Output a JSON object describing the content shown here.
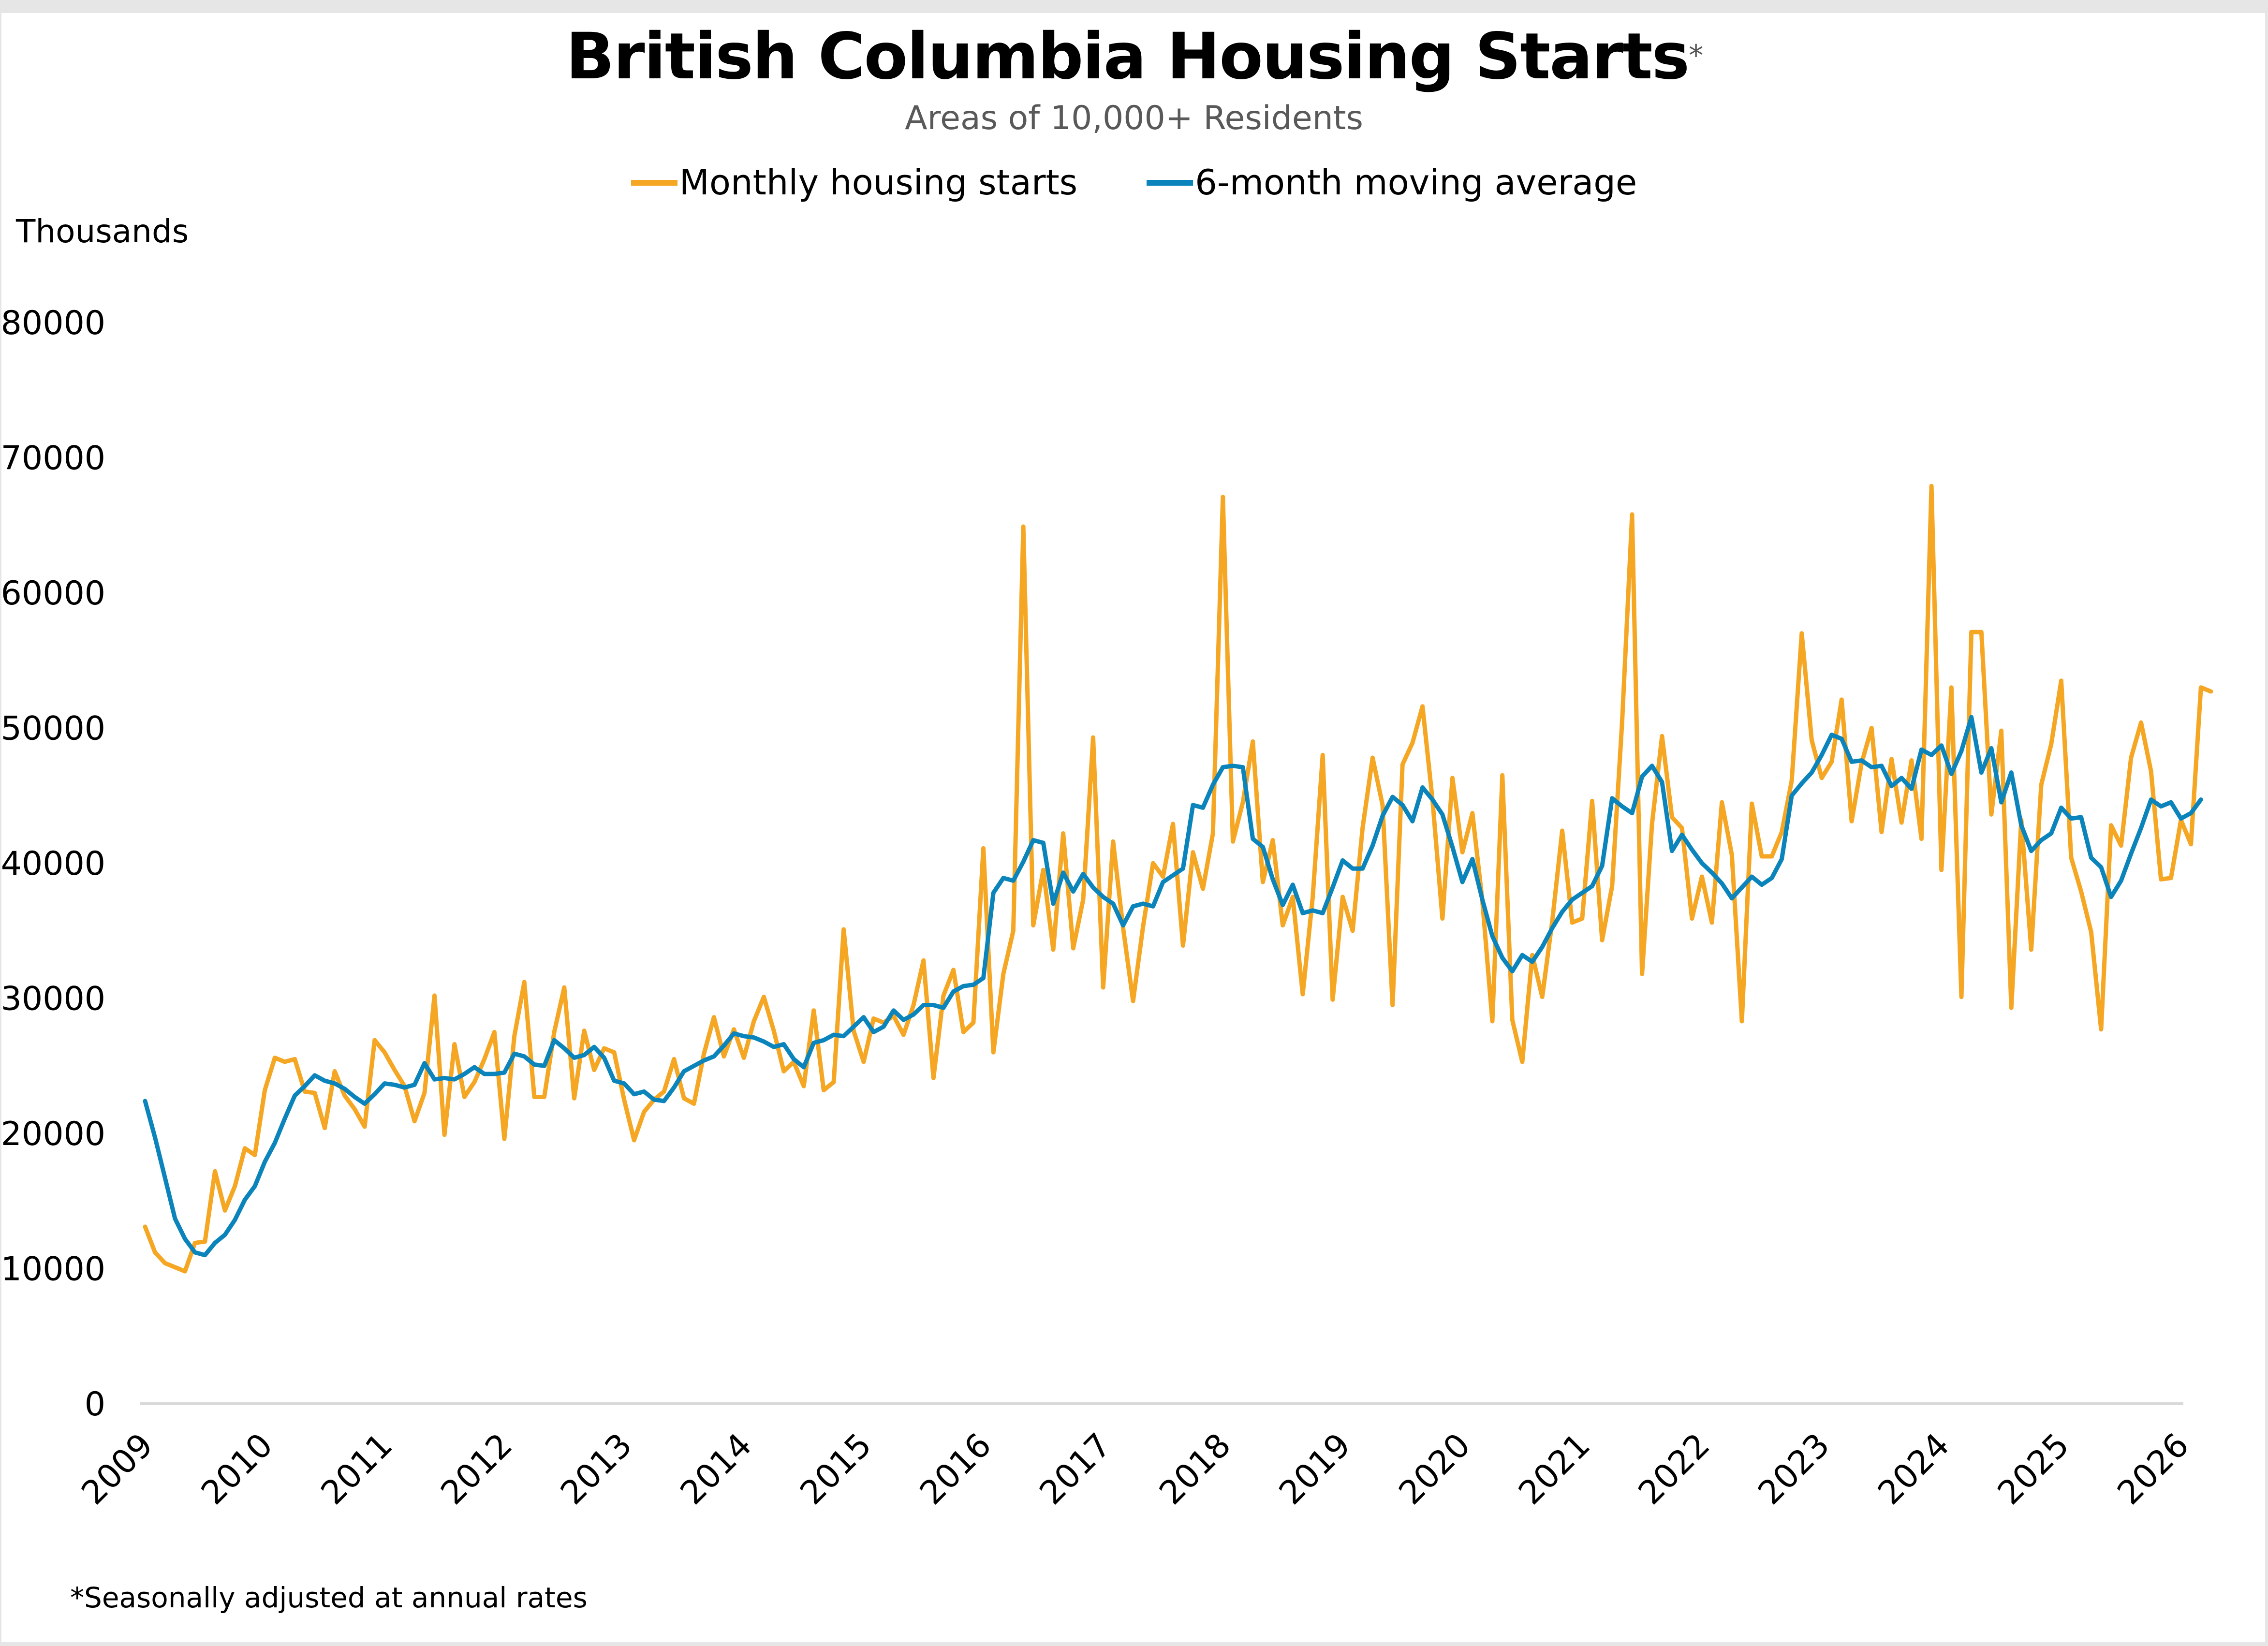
{
  "chart_data": {
    "type": "line",
    "title": "British Columbia Housing Starts",
    "title_marker": "*",
    "subtitle": "Areas of 10,000+ Residents",
    "ylabel": "Thousands",
    "xlabel": "",
    "ylim": [
      0,
      80000
    ],
    "yticks": [
      "0",
      "10000",
      "20000",
      "30000",
      "40000",
      "50000",
      "60000",
      "70000",
      "80000"
    ],
    "ytick_values": [
      0,
      10000,
      20000,
      30000,
      40000,
      50000,
      60000,
      70000,
      80000
    ],
    "xticks": [
      "2009",
      "2010",
      "2011",
      "2012",
      "2013",
      "2014",
      "2015",
      "2016",
      "2017",
      "2018",
      "2019",
      "2020",
      "2021",
      "2022",
      "2023",
      "2024",
      "2025",
      "2026"
    ],
    "x_start": "2009-01",
    "x_frequency": "monthly",
    "grid": false,
    "legend_position": "top",
    "footnote": "*Seasonally adjusted at annual rates",
    "series": [
      {
        "name": "Monthly housing starts",
        "color": "#F5A623",
        "values": [
          13100,
          11200,
          10400,
          10100,
          9800,
          11900,
          12000,
          17200,
          14300,
          16100,
          18900,
          18400,
          23200,
          25600,
          25300,
          25500,
          23100,
          23000,
          20400,
          24600,
          22800,
          21800,
          20500,
          26900,
          26000,
          24700,
          23500,
          20900,
          23000,
          30200,
          19900,
          26600,
          22700,
          23800,
          25500,
          27500,
          19600,
          27200,
          31200,
          22700,
          22700,
          27500,
          30800,
          22600,
          27600,
          24700,
          26300,
          26000,
          22500,
          19500,
          21600,
          22500,
          23100,
          25500,
          22600,
          22200,
          25900,
          28600,
          25700,
          27700,
          25600,
          28300,
          30100,
          27600,
          24600,
          25300,
          23500,
          29100,
          23200,
          23800,
          35100,
          27600,
          25300,
          28500,
          28200,
          28700,
          27300,
          29500,
          32800,
          24100,
          30200,
          32100,
          27500,
          28200,
          41100,
          26000,
          31800,
          35000,
          64900,
          35400,
          39500,
          33600,
          42200,
          33700,
          37300,
          49300,
          30800,
          41600,
          35200,
          29800,
          35300,
          40000,
          39000,
          42900,
          33900,
          40800,
          38100,
          42200,
          67100,
          41600,
          44500,
          49000,
          38600,
          41700,
          35400,
          37500,
          30300,
          37500,
          48000,
          29900,
          37500,
          35000,
          42600,
          47800,
          44300,
          29500,
          47300,
          48900,
          51600,
          44700,
          35900,
          46300,
          40800,
          43700,
          37200,
          28300,
          46500,
          28400,
          25300,
          33200,
          30100,
          35700,
          42400,
          35600,
          35900,
          44600,
          34300,
          38300,
          50400,
          65800,
          31800,
          42900,
          49400,
          43400,
          42600,
          35900,
          39000,
          35600,
          44500,
          40600,
          28300,
          44400,
          40500,
          40500,
          42300,
          46100,
          57000,
          49100,
          46300,
          47500,
          52100,
          43100,
          47400,
          50000,
          42300,
          47700,
          43000,
          47600,
          41800,
          67900,
          39500,
          53000,
          30100,
          57100,
          57100,
          43600,
          49800,
          29300,
          43200,
          33600,
          45800,
          48800,
          53500,
          40400,
          37900,
          34900,
          27700,
          42800,
          41300,
          47800,
          50400,
          46800,
          38800,
          38900,
          43200,
          41400,
          53000,
          52700
        ]
      },
      {
        "name": "6-month moving average",
        "color": "#0A84BA",
        "values": [
          22400,
          19700,
          16700,
          13700,
          12200,
          11200,
          11000,
          11900,
          12500,
          13600,
          15100,
          16100,
          17900,
          19300,
          21100,
          22800,
          23500,
          24300,
          23900,
          23700,
          23300,
          22700,
          22200,
          22900,
          23700,
          23600,
          23400,
          23600,
          25200,
          24000,
          24100,
          24000,
          24400,
          24900,
          24400,
          24400,
          24500,
          25900,
          25700,
          25100,
          25000,
          26900,
          26300,
          25600,
          25800,
          26400,
          25600,
          23900,
          23700,
          22900,
          23100,
          22500,
          22400,
          23400,
          24600,
          25000,
          25400,
          25700,
          26500,
          27400,
          27200,
          27100,
          26800,
          26400,
          26600,
          25500,
          24900,
          26700,
          26900,
          27300,
          27200,
          27900,
          28600,
          27500,
          27900,
          29100,
          28400,
          28800,
          29500,
          29500,
          29300,
          30500,
          30900,
          31000,
          31500,
          37800,
          38900,
          38700,
          40100,
          41700,
          41500,
          37000,
          39300,
          37900,
          39200,
          38200,
          37500,
          37000,
          35400,
          36800,
          37000,
          36800,
          38600,
          39100,
          39600,
          44300,
          44100,
          45800,
          47100,
          47200,
          47100,
          41800,
          41200,
          38800,
          36900,
          38400,
          36300,
          36500,
          36300,
          38200,
          40200,
          39600,
          39600,
          41300,
          43500,
          44900,
          44300,
          43100,
          45600,
          44700,
          43600,
          41200,
          38600,
          40300,
          37300,
          34600,
          33000,
          32000,
          33200,
          32700,
          33800,
          35200,
          36400,
          37300,
          37800,
          38300,
          39800,
          44800,
          44200,
          43700,
          46400,
          47200,
          46000,
          40900,
          42100,
          41000,
          40000,
          39300,
          38500,
          37400,
          38200,
          39000,
          38400,
          38900,
          40300,
          45000,
          45900,
          46700,
          48000,
          49500,
          49200,
          47500,
          47600,
          47100,
          47200,
          45700,
          46300,
          45500,
          48400,
          48000,
          48700,
          46600,
          48300,
          50800,
          46700,
          48500,
          44500,
          46700,
          42800,
          40900,
          41700,
          42200,
          44100,
          43300,
          43400,
          40400,
          39700,
          37500,
          38700,
          40700,
          42600,
          44700,
          44200,
          44500,
          43300,
          43700,
          44700
        ]
      }
    ]
  }
}
